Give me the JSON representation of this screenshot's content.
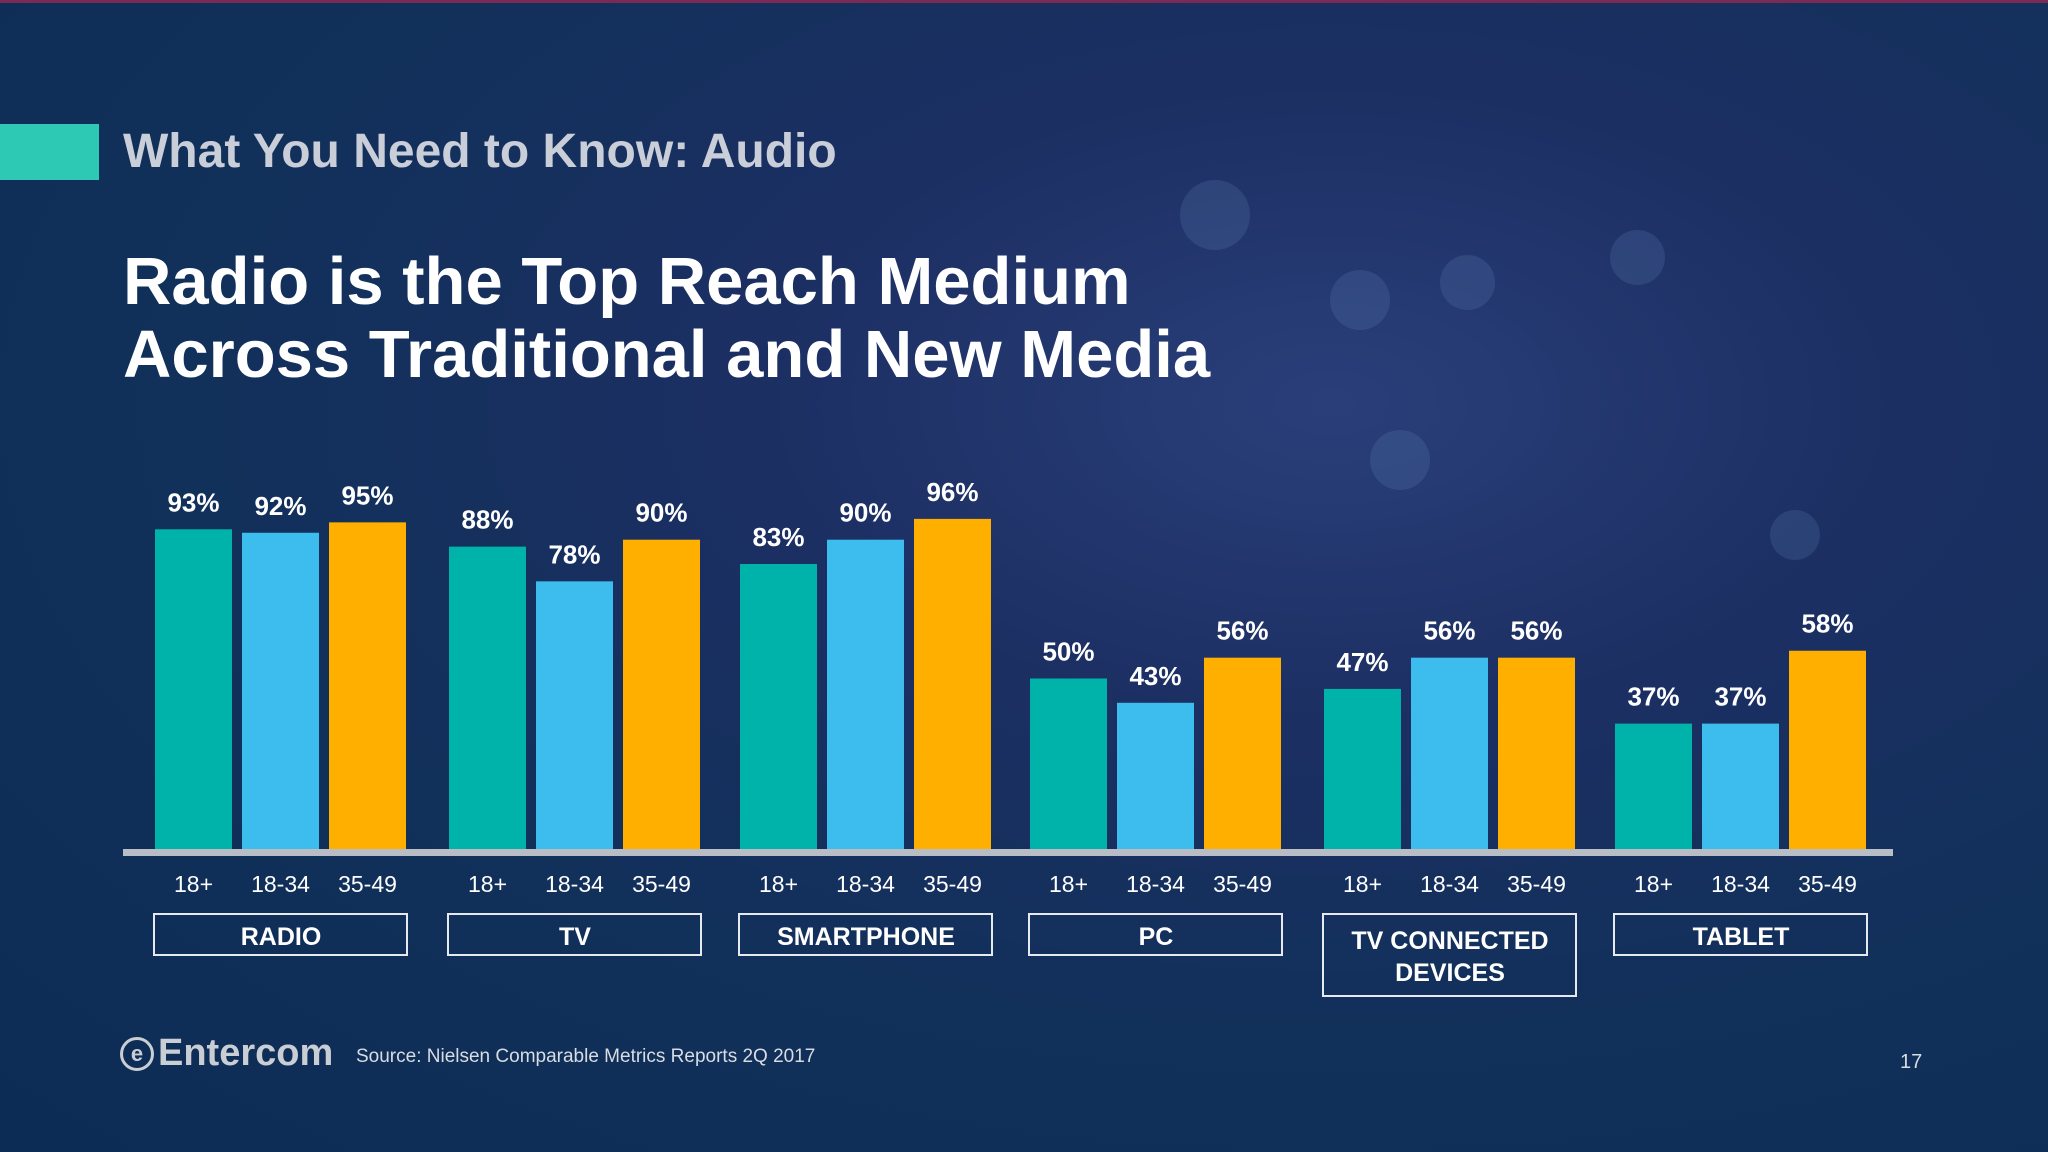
{
  "header": {
    "section_title": "What You Need to Know: Audio",
    "accent_color": "#2ec9b5"
  },
  "title": {
    "line1": "Radio is the Top Reach Medium",
    "line2": "Across Traditional and New Media"
  },
  "chart_data": {
    "type": "bar",
    "categories": [
      "RADIO",
      "TV",
      "SMARTPHONE",
      "PC",
      "TV CONNECTED DEVICES",
      "TABLET"
    ],
    "subcategories": [
      "18+",
      "18-34",
      "35-49"
    ],
    "series": [
      {
        "name": "18+",
        "color": "#00b3aa",
        "values": [
          93,
          88,
          83,
          50,
          47,
          37
        ]
      },
      {
        "name": "18-34",
        "color": "#3dbdee",
        "values": [
          92,
          78,
          90,
          43,
          56,
          37
        ]
      },
      {
        "name": "35-49",
        "color": "#ffaf00",
        "values": [
          95,
          90,
          96,
          56,
          56,
          58
        ]
      }
    ],
    "value_format": "percent",
    "ylim": [
      0,
      100
    ],
    "grid": false,
    "legend": "none"
  },
  "footer": {
    "logo": "Entercom",
    "source": "Source: Nielsen Comparable Metrics Reports 2Q 2017",
    "page": "17"
  }
}
